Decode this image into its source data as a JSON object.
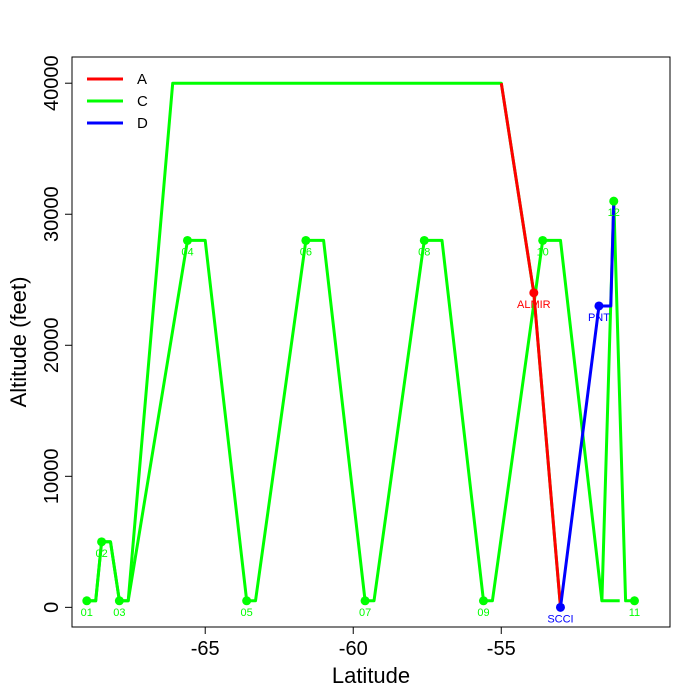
{
  "chart_data": {
    "type": "line",
    "title": "",
    "xlabel": "Latitude",
    "ylabel": "Altitude (feet)",
    "xlim": [
      -69.5,
      -49.3
    ],
    "ylim": [
      -1500,
      42000
    ],
    "x_ticks": [
      {
        "value": -65,
        "label": "-65"
      },
      {
        "value": -60,
        "label": "-60"
      },
      {
        "value": -55,
        "label": "-55"
      }
    ],
    "y_ticks": [
      {
        "value": 0,
        "label": "0"
      },
      {
        "value": 10000,
        "label": "10000"
      },
      {
        "value": 20000,
        "label": "20000"
      },
      {
        "value": 30000,
        "label": "30000"
      },
      {
        "value": 40000,
        "label": "40000"
      }
    ],
    "legend": {
      "position": "top-left",
      "entries": [
        {
          "name": "A",
          "color": "#ff0000"
        },
        {
          "name": "C",
          "color": "#00ff00"
        },
        {
          "name": "D",
          "color": "#0000ff"
        }
      ]
    },
    "series": [
      {
        "name": "A",
        "color": "#ff0000",
        "line": [
          [
            -55.0,
            40000
          ],
          [
            -53.9,
            24000
          ],
          [
            -53.0,
            0
          ]
        ],
        "points": [
          {
            "x": -53.9,
            "y": 24000,
            "label": "ALMIR"
          }
        ]
      },
      {
        "name": "C",
        "color": "#00ff00",
        "line": [
          [
            -69.0,
            500
          ],
          [
            -68.7,
            500
          ],
          [
            -68.5,
            5000
          ],
          [
            -68.2,
            5000
          ],
          [
            -67.9,
            500
          ],
          [
            -67.6,
            500
          ],
          [
            -66.1,
            40000
          ],
          [
            -55.0,
            40000
          ],
          [
            -53.9,
            24000
          ],
          [
            -53.0,
            0
          ]
        ],
        "line2": [
          [
            -69.0,
            500
          ],
          [
            -68.7,
            500
          ],
          [
            -68.5,
            5000
          ],
          [
            -68.2,
            5000
          ],
          [
            -67.9,
            500
          ],
          [
            -67.6,
            500
          ],
          [
            -65.6,
            28000
          ],
          [
            -65.0,
            28000
          ],
          [
            -63.6,
            500
          ],
          [
            -63.3,
            500
          ],
          [
            -61.6,
            28000
          ],
          [
            -61.0,
            28000
          ],
          [
            -59.6,
            500
          ],
          [
            -59.3,
            500
          ],
          [
            -57.6,
            28000
          ],
          [
            -57.0,
            28000
          ],
          [
            -55.6,
            500
          ],
          [
            -55.3,
            500
          ],
          [
            -53.6,
            28000
          ],
          [
            -53.0,
            28000
          ],
          [
            -51.6,
            500
          ],
          [
            -51.3,
            500
          ],
          [
            -51.0,
            500
          ]
        ],
        "line3": [
          [
            -51.6,
            500
          ],
          [
            -51.2,
            31000
          ],
          [
            -50.8,
            500
          ],
          [
            -50.5,
            500
          ]
        ],
        "points": [
          {
            "x": -69.0,
            "y": 500,
            "label": "01"
          },
          {
            "x": -68.5,
            "y": 5000,
            "label": "02"
          },
          {
            "x": -67.9,
            "y": 500,
            "label": "03"
          },
          {
            "x": -65.6,
            "y": 28000,
            "label": "04"
          },
          {
            "x": -63.6,
            "y": 500,
            "label": "05"
          },
          {
            "x": -61.6,
            "y": 28000,
            "label": "06"
          },
          {
            "x": -59.6,
            "y": 500,
            "label": "07"
          },
          {
            "x": -57.6,
            "y": 28000,
            "label": "08"
          },
          {
            "x": -55.6,
            "y": 500,
            "label": "09"
          },
          {
            "x": -53.6,
            "y": 28000,
            "label": "10"
          },
          {
            "x": -50.5,
            "y": 500,
            "label": "11"
          },
          {
            "x": -51.2,
            "y": 31000,
            "label": "12"
          }
        ]
      },
      {
        "name": "D",
        "color": "#0000ff",
        "line": [
          [
            -53.0,
            0
          ],
          [
            -51.7,
            23000
          ],
          [
            -51.3,
            23000
          ],
          [
            -51.2,
            31000
          ]
        ],
        "points": [
          {
            "x": -53.0,
            "y": 0,
            "label": "SCCI"
          },
          {
            "x": -51.7,
            "y": 23000,
            "label": "PNT"
          }
        ]
      }
    ]
  }
}
